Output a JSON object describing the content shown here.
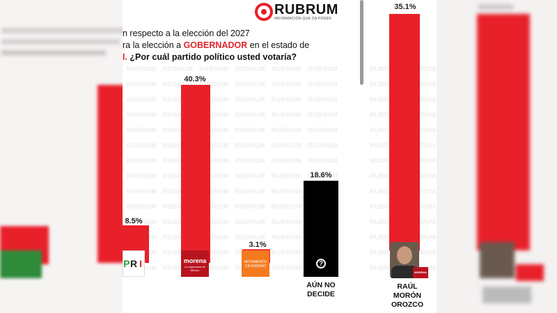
{
  "header": {
    "brand": "RUBRUM",
    "tagline": "INFORMACIÓN QUE DA PODER"
  },
  "question": {
    "line1": "n respecto a la elección del 2027",
    "line2_pre": "ra la elección a ",
    "line2_hl": "GOBERNADOR",
    "line2_post": " en el estado de",
    "line3_hl": "I.",
    "line3_post": " ¿Por cuál partido político usted votaría?"
  },
  "watermark_text": "RUBRUM",
  "colors": {
    "accent": "#e8202a",
    "morena": "#b8141e",
    "mc": "#f47a20",
    "undecided": "#000000"
  },
  "chart_data": [
    {
      "type": "bar",
      "categories": [
        "PRI",
        "MORENA",
        "MOVIMIENTO CIUDADANO",
        "AÚN NO DECIDE"
      ],
      "values": [
        8.5,
        40.3,
        3.1,
        18.6
      ],
      "value_labels": [
        "8.5%",
        "40.3%",
        "3.1%",
        "18.6%"
      ],
      "colors": [
        "#e8202a",
        "#e8202a",
        "#e8202a",
        "#000000"
      ],
      "category_labels": {
        "undecided_line1": "AÚN NO",
        "undecided_line2": "DECIDE"
      },
      "logos": {
        "pri_letters": [
          "P",
          "R",
          "I"
        ],
        "morena_word": "morena",
        "morena_slogan": "La esperanza de México",
        "mc_text": "MOVIMIENTO CIUDADANO",
        "undecided_icon": "?"
      }
    },
    {
      "type": "bar",
      "categories": [
        "RAÚL MORÓN OROZCO"
      ],
      "values": [
        35.1
      ],
      "value_labels": [
        "35.1%"
      ],
      "category_labels": {
        "line1": "RAÚL",
        "line2": "MORÓN",
        "line3": "OROZCO"
      },
      "badge": "MORENA"
    }
  ]
}
